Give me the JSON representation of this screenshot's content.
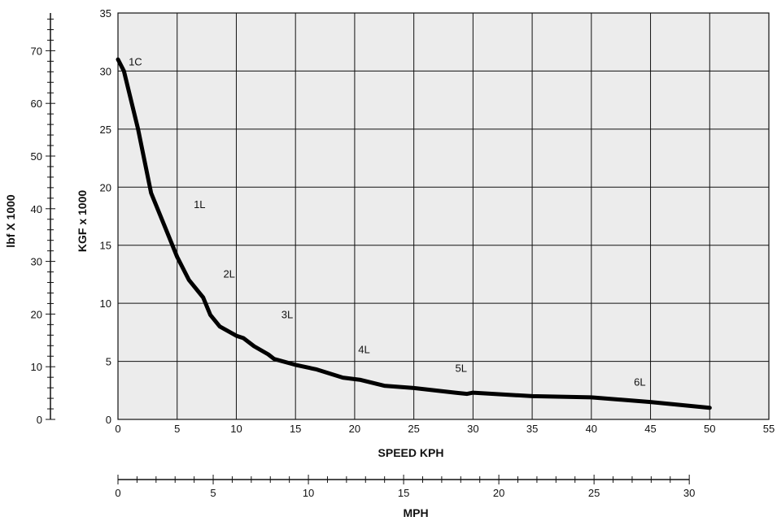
{
  "chart_data": {
    "type": "line",
    "title": "",
    "xlabel": "SPEED KPH",
    "ylabel": "KGF x 1000",
    "secondary_y_label": "lbf X 1000",
    "secondary_x_label": "MPH",
    "xlim": [
      0,
      55
    ],
    "ylim": [
      0,
      35
    ],
    "secondary_ylim": [
      0,
      77.16
    ],
    "secondary_xlim": [
      0,
      34.18
    ],
    "x_ticks": [
      "0",
      "5",
      "10",
      "15",
      "20",
      "25",
      "30",
      "35",
      "40",
      "45",
      "50",
      "55"
    ],
    "y_ticks": [
      "0",
      "5",
      "10",
      "15",
      "20",
      "25",
      "30",
      "35"
    ],
    "lbf_ticks": [
      "0",
      "10",
      "20",
      "30",
      "40",
      "50",
      "60",
      "70"
    ],
    "mph_ticks": [
      "0",
      "5",
      "10",
      "15",
      "20",
      "25",
      "30"
    ],
    "grid": true,
    "series": [
      {
        "x": [
          0,
          0.5,
          1.7,
          2.8,
          4,
          5,
          6,
          7.2,
          7.8,
          8.6,
          10,
          10.6,
          11.5,
          12.7,
          13.2,
          15,
          16.8,
          19,
          20.5,
          22.5,
          25,
          28.5,
          29.5,
          30,
          35,
          40,
          45,
          50
        ],
        "y": [
          31,
          30,
          25,
          19.5,
          16.5,
          14,
          12,
          10.5,
          9,
          8,
          7.2,
          7,
          6.3,
          5.6,
          5.2,
          4.7,
          4.3,
          3.6,
          3.4,
          2.9,
          2.7,
          2.3,
          2.2,
          2.3,
          2.0,
          1.9,
          1.5,
          1.0
        ]
      }
    ],
    "annotations": [
      {
        "text": "1C",
        "x": 0.9,
        "y": 30.5
      },
      {
        "text": "1L",
        "x": 6.4,
        "y": 18.2
      },
      {
        "text": "2L",
        "x": 8.9,
        "y": 12.2
      },
      {
        "text": "3L",
        "x": 13.8,
        "y": 8.7
      },
      {
        "text": "4L",
        "x": 20.3,
        "y": 5.7
      },
      {
        "text": "5L",
        "x": 28.5,
        "y": 4.1
      },
      {
        "text": "6L",
        "x": 43.6,
        "y": 2.9
      }
    ],
    "colors": {
      "plot_bg": "#ececec",
      "grid": "#111111",
      "line": "#000000"
    }
  }
}
